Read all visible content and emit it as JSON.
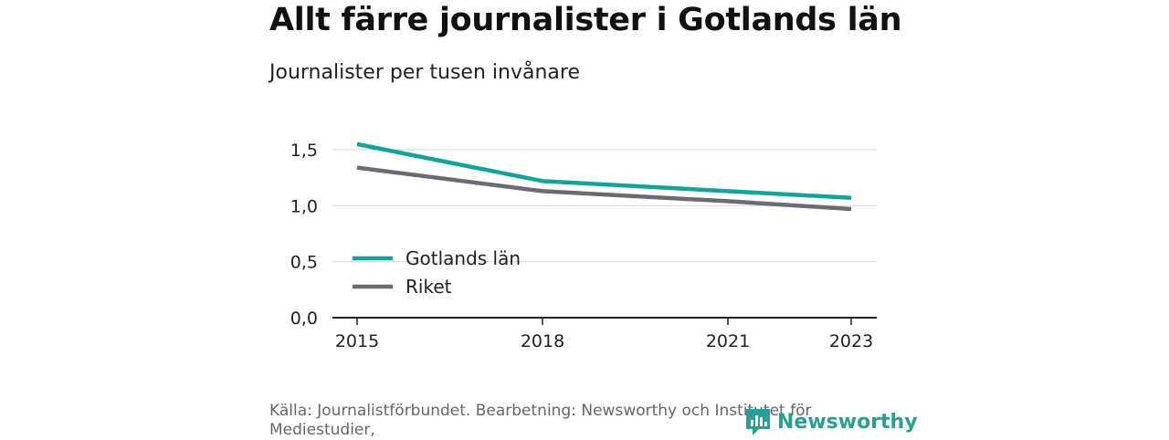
{
  "title": "Allt färre journalister i Gotlands län",
  "subtitle": "Journalister per tusen invånare",
  "source": "Källa: Journalistförbundet. Bearbetning: Newsworthy och Institutet för Mediestudier,",
  "brand": {
    "name": "Newsworthy",
    "color": "#2a9d94"
  },
  "chart_data": {
    "type": "line",
    "title": "Allt färre journalister i Gotlands län",
    "subtitle": "Journalister per tusen invånare",
    "x": [
      2015,
      2018,
      2021,
      2023
    ],
    "x_ticks": [
      "2015",
      "2018",
      "2021",
      "2023"
    ],
    "y_ticks": [
      "0,0",
      "0,5",
      "1,0",
      "1,5"
    ],
    "ylim": [
      0,
      1.5
    ],
    "xlim": [
      2015,
      2023
    ],
    "grid": true,
    "legend_position": "inside-left",
    "series": [
      {
        "name": "Gotlands län",
        "color": "#13a39a",
        "x": [
          2015,
          2018,
          2021,
          2023
        ],
        "values": [
          1.55,
          1.22,
          1.13,
          1.07
        ]
      },
      {
        "name": "Riket",
        "color": "#6c6a72",
        "x": [
          2015,
          2018,
          2021,
          2023
        ],
        "values": [
          1.34,
          1.13,
          1.04,
          0.97
        ]
      }
    ]
  }
}
